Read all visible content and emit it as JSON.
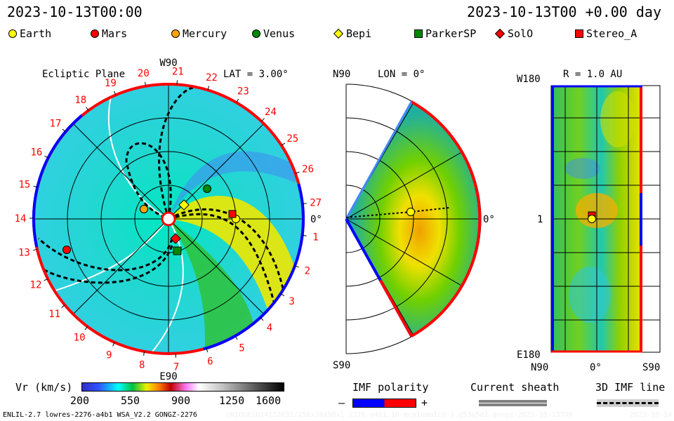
{
  "header": {
    "left_time": "2023-10-13T00:00",
    "right_time": "2023-10-13T00 +0.00 day"
  },
  "legend": [
    {
      "label": "Earth",
      "shape": "circle",
      "color": "#ffff00"
    },
    {
      "label": "Mars",
      "shape": "circle",
      "color": "#ff0000"
    },
    {
      "label": "Mercury",
      "shape": "circle",
      "color": "#ffa500"
    },
    {
      "label": "Venus",
      "shape": "circle",
      "color": "#008000"
    },
    {
      "label": "Bepi",
      "shape": "diamond",
      "color": "#ffff00"
    },
    {
      "label": "ParkerSP",
      "shape": "square",
      "color": "#008000"
    },
    {
      "label": "SolO",
      "shape": "diamond",
      "color": "#ff0000"
    },
    {
      "label": "Stereo_A",
      "shape": "square",
      "color": "#ff0000"
    }
  ],
  "ecliptic": {
    "title": "Ecliptic Plane",
    "top_label": "W90",
    "bottom_label": "E90",
    "right_label": "0°",
    "lat_label": "LAT = 3.00°",
    "days": [
      "1",
      "2",
      "3",
      "4",
      "5",
      "6",
      "7",
      "8",
      "9",
      "10",
      "11",
      "12",
      "13",
      "14",
      "15",
      "16",
      "17",
      "18",
      "19",
      "20",
      "21",
      "22",
      "23",
      "24",
      "25",
      "26",
      "27"
    ]
  },
  "meridional": {
    "top_label": "N90",
    "bottom_label": "S90",
    "lon_label": "LON = 0°",
    "right_label": "0°"
  },
  "radial": {
    "title": "R = 1.0 AU",
    "top_left": "W180",
    "bottom_left": "E180",
    "mid_left": "1",
    "bottom_labels": [
      "N90",
      "0°",
      "S90"
    ]
  },
  "colorbar": {
    "label": "Vr (km/s)",
    "ticks": [
      "200",
      "550",
      "900",
      "1250",
      "1600"
    ]
  },
  "imf": {
    "title": "IMF polarity",
    "minus": "–",
    "plus": "+",
    "neg_color": "#0000ff",
    "pos_color": "#ff0000"
  },
  "sheath": {
    "title": "Current sheath"
  },
  "imf3d": {
    "title": "3D IMF line"
  },
  "footer": {
    "run_info": "ENLIL-2.7 lowres-2276-a4b1 WSA_V2.2 GONGZ-2276",
    "run_id": "UNIQUE1014132632/256x30x90x1.2276-a4b1.16-mcp1umn1cd-1.g53q5d2.gongz-2023-10-13T00",
    "run_date": "2023-10-14"
  }
}
